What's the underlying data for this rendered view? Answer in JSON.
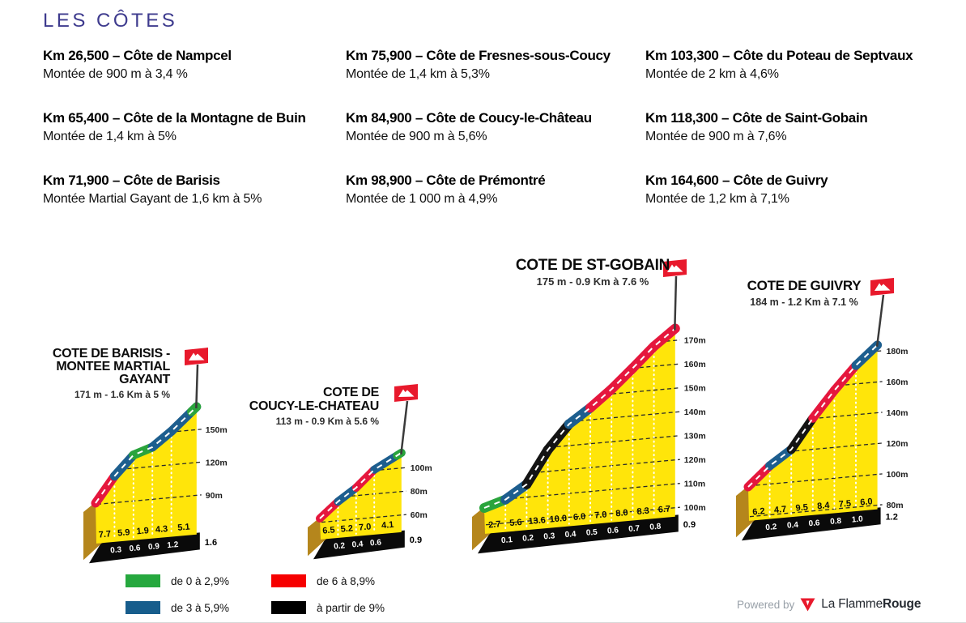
{
  "page": {
    "title": "LES CÔTES"
  },
  "colors": {
    "accent_title": "#3E3B8E",
    "yellow": "#FFE50A",
    "brown": "#B5861C",
    "band_black": "#0A0A0A",
    "cat_green": "#2AA43C",
    "cat_blue": "#1D5E8E",
    "cat_red": "#E5173D",
    "cat_black": "#141414",
    "legend_green": "#26A83E",
    "legend_blue": "#175D8C",
    "legend_red": "#F60000",
    "legend_black": "#000000",
    "flag_red": "#E8192C",
    "grid_line": "#2A2A2A"
  },
  "climb_list": {
    "columns": [
      [
        {
          "km_title": "Km 26,500 – Côte de Nampcel",
          "detail": "Montée de 900 m à 3,4 %"
        },
        {
          "km_title": "Km 65,400 – Côte de la Montagne de Buin",
          "detail": "Montée de 1,4 km à 5%"
        },
        {
          "km_title": "Km 71,900 –  Côte de Barisis",
          "detail": "Montée Martial Gayant de 1,6 km  à 5%"
        }
      ],
      [
        {
          "km_title": "Km 75,900 –  Côte de Fresnes-sous-Coucy",
          "detail": "Montée de 1,4 km  à 5,3%"
        },
        {
          "km_title": "Km 84,900 –  Côte de Coucy-le-Château",
          "detail": "Montée de 900 m  à 5,6%"
        },
        {
          "km_title": "Km 98,900 –  Côte de Prémontré",
          "detail": "Montée de 1 000 m  à 4,9%"
        }
      ],
      [
        {
          "km_title": "Km 103,300 – Côte du Poteau de Septvaux",
          "detail": "Montée de 2 km  à 4,6%"
        },
        {
          "km_title": "Km 118,300 –  Côte de Saint-Gobain",
          "detail": "Montée de 900 m  à 7,6%"
        },
        {
          "km_title": "Km 164,600 –  Côte de Guivry",
          "detail": "Montée de 1,2 km  à 7,1%"
        }
      ]
    ]
  },
  "legend": {
    "items": [
      {
        "label": "de 0 à 2,9%",
        "color_key": "legend_green"
      },
      {
        "label": "de 3 à 5,9%",
        "color_key": "legend_blue"
      },
      {
        "label": "de 6 à 8,9%",
        "color_key": "legend_red"
      },
      {
        "label": "à partir de 9%",
        "color_key": "legend_black"
      }
    ]
  },
  "footer": {
    "powered_by": "Powered by",
    "brand_regular": "La Flamme",
    "brand_bold": "Rouge"
  },
  "chart_data": [
    {
      "type": "area",
      "id": "barisis",
      "title_lines": [
        "COTE DE BARISIS -",
        "MONTEE MARTIAL",
        "GAYANT"
      ],
      "subtitle": "171 m - 1.6 Km à 5 %",
      "summit_elevation_m": 171,
      "total_distance_km": 1.6,
      "total_label": "1.6",
      "grid_elevations_m": [
        90,
        120,
        150
      ],
      "segments": [
        {
          "len_km": 0.3,
          "gradient_pct": 7.7,
          "category": "red"
        },
        {
          "len_km": 0.3,
          "gradient_pct": 5.9,
          "category": "blue"
        },
        {
          "len_km": 0.3,
          "gradient_pct": 1.9,
          "category": "green"
        },
        {
          "len_km": 0.3,
          "gradient_pct": 4.3,
          "category": "blue"
        },
        {
          "len_km": 0.4,
          "gradient_pct": 5.1,
          "category": "blue"
        }
      ],
      "summit_cap": {
        "len_km": 0.08,
        "category": "green"
      },
      "distance_labels": [
        "0.3",
        "0.6",
        "0.9",
        "1.2"
      ]
    },
    {
      "type": "area",
      "id": "coucy-le-chateau",
      "title_lines": [
        "COTE DE",
        "COUCY-LE-CHATEAU"
      ],
      "subtitle": "113 m - 0.9 Km à 5.6 %",
      "summit_elevation_m": 113,
      "total_distance_km": 0.9,
      "total_label": "0.9",
      "grid_elevations_m": [
        60,
        80,
        100
      ],
      "segments": [
        {
          "len_km": 0.2,
          "gradient_pct": 6.5,
          "category": "red"
        },
        {
          "len_km": 0.2,
          "gradient_pct": 5.2,
          "category": "blue"
        },
        {
          "len_km": 0.2,
          "gradient_pct": 7.0,
          "category": "red"
        },
        {
          "len_km": 0.3,
          "gradient_pct": 4.1,
          "category": "blue"
        }
      ],
      "summit_cap": {
        "len_km": 0.05,
        "category": "green"
      },
      "distance_labels": [
        "0.2",
        "0.4",
        "0.6"
      ]
    },
    {
      "type": "area",
      "id": "st-gobain",
      "title_lines": [
        "COTE DE ST-GOBAIN"
      ],
      "subtitle": "175 m - 0.9 Km à 7.6 %",
      "summit_elevation_m": 175,
      "total_distance_km": 0.9,
      "total_label": "0.9",
      "grid_elevations_m": [
        100,
        110,
        120,
        130,
        140,
        150,
        160,
        170
      ],
      "segments": [
        {
          "len_km": 0.1,
          "gradient_pct": 2.7,
          "category": "green"
        },
        {
          "len_km": 0.1,
          "gradient_pct": 5.6,
          "category": "blue"
        },
        {
          "len_km": 0.1,
          "gradient_pct": 13.6,
          "category": "black"
        },
        {
          "len_km": 0.1,
          "gradient_pct": 10.0,
          "category": "black"
        },
        {
          "len_km": 0.1,
          "gradient_pct": 6.0,
          "category": "blue"
        },
        {
          "len_km": 0.1,
          "gradient_pct": 7.0,
          "category": "red"
        },
        {
          "len_km": 0.1,
          "gradient_pct": 8.0,
          "category": "red"
        },
        {
          "len_km": 0.1,
          "gradient_pct": 8.3,
          "category": "red"
        },
        {
          "len_km": 0.1,
          "gradient_pct": 6.7,
          "category": "red"
        }
      ],
      "summit_cap": null,
      "distance_labels": [
        "0.1",
        "0.2",
        "0.3",
        "0.4",
        "0.5",
        "0.6",
        "0.7",
        "0.8"
      ]
    },
    {
      "type": "area",
      "id": "guivry",
      "title_lines": [
        "COTE DE GUIVRY"
      ],
      "subtitle": "184 m - 1.2 Km à 7.1 %",
      "summit_elevation_m": 184,
      "total_distance_km": 1.2,
      "total_label": "1.2",
      "grid_elevations_m": [
        80,
        100,
        120,
        140,
        160,
        180
      ],
      "segments": [
        {
          "len_km": 0.2,
          "gradient_pct": 6.2,
          "category": "red"
        },
        {
          "len_km": 0.2,
          "gradient_pct": 4.7,
          "category": "blue"
        },
        {
          "len_km": 0.2,
          "gradient_pct": 9.5,
          "category": "black"
        },
        {
          "len_km": 0.2,
          "gradient_pct": 8.4,
          "category": "red"
        },
        {
          "len_km": 0.2,
          "gradient_pct": 7.5,
          "category": "red"
        },
        {
          "len_km": 0.2,
          "gradient_pct": 6.0,
          "category": "blue"
        }
      ],
      "summit_cap": null,
      "distance_labels": [
        "0.2",
        "0.4",
        "0.6",
        "0.8",
        "1.0"
      ]
    }
  ]
}
